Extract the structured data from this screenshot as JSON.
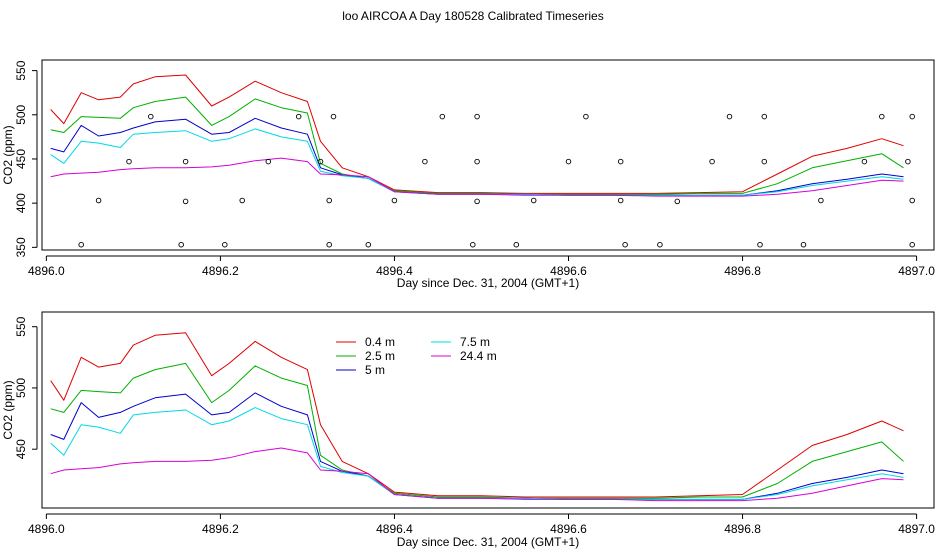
{
  "title": "loo AIRCOA A  Day 180528  Calibrated Timeseries",
  "colors": {
    "s04": "#DF0000",
    "s25": "#00B000",
    "s5": "#0000CC",
    "s75": "#00D8E8",
    "s244": "#D800D8",
    "markers": "#000000"
  },
  "chart_data": [
    {
      "type": "line",
      "xlabel": "Day since Dec. 31, 2004 (GMT+1)",
      "ylabel": "CO2 (ppm)",
      "xlim": [
        4895.995,
        4897.02
      ],
      "ylim": [
        347,
        562
      ],
      "xticks": [
        {
          "value": 4896.0,
          "label": "4896.0"
        },
        {
          "value": 4896.2,
          "label": "4896.2"
        },
        {
          "value": 4896.4,
          "label": "4896.4"
        },
        {
          "value": 4896.6,
          "label": "4896.6"
        },
        {
          "value": 4896.8,
          "label": "4896.8"
        },
        {
          "value": 4897.0,
          "label": "4897.0"
        }
      ],
      "yticks": [
        {
          "value": 350,
          "label": "350"
        },
        {
          "value": 400,
          "label": "400"
        },
        {
          "value": 450,
          "label": "450"
        },
        {
          "value": 500,
          "label": "500"
        },
        {
          "value": 550,
          "label": "550"
        }
      ],
      "grid": false,
      "legend": null,
      "series": [
        {
          "color_key": "s04",
          "x": [
            4896.005,
            4896.02,
            4896.04,
            4896.06,
            4896.085,
            4896.1,
            4896.125,
            4896.16,
            4896.19,
            4896.21,
            4896.24,
            4896.27,
            4896.3,
            4896.315,
            4896.34,
            4896.37,
            4896.4,
            4896.45,
            4896.5,
            4896.55,
            4896.6,
            4896.65,
            4896.7,
            4896.75,
            4896.8,
            4896.84,
            4896.88,
            4896.92,
            4896.96,
            4896.985
          ],
          "y": [
            506,
            490,
            525,
            517,
            520,
            535,
            543,
            545,
            510,
            520,
            538,
            525,
            515,
            470,
            440,
            430,
            415,
            412,
            412,
            411,
            411,
            411,
            411,
            412,
            413,
            433,
            453,
            462,
            473,
            465
          ]
        },
        {
          "color_key": "s25",
          "x": [
            4896.005,
            4896.02,
            4896.04,
            4896.06,
            4896.085,
            4896.1,
            4896.125,
            4896.16,
            4896.19,
            4896.21,
            4896.24,
            4896.27,
            4896.3,
            4896.315,
            4896.34,
            4896.37,
            4896.4,
            4896.45,
            4896.5,
            4896.55,
            4896.6,
            4896.65,
            4896.7,
            4896.75,
            4896.8,
            4896.84,
            4896.88,
            4896.92,
            4896.96,
            4896.985
          ],
          "y": [
            483,
            480,
            498,
            497,
            496,
            508,
            515,
            520,
            488,
            498,
            518,
            508,
            502,
            445,
            433,
            428,
            414,
            411,
            411,
            410,
            410,
            410,
            410,
            411,
            411,
            422,
            440,
            448,
            456,
            440
          ]
        },
        {
          "color_key": "s5",
          "x": [
            4896.005,
            4896.02,
            4896.04,
            4896.06,
            4896.085,
            4896.1,
            4896.125,
            4896.16,
            4896.19,
            4896.21,
            4896.24,
            4896.27,
            4896.3,
            4896.315,
            4896.34,
            4896.37,
            4896.4,
            4896.45,
            4896.5,
            4896.55,
            4896.6,
            4896.65,
            4896.7,
            4896.75,
            4896.8,
            4896.84,
            4896.88,
            4896.92,
            4896.96,
            4896.985
          ],
          "y": [
            462,
            458,
            488,
            476,
            480,
            485,
            492,
            495,
            478,
            480,
            496,
            485,
            478,
            440,
            432,
            428,
            413,
            410,
            410,
            410,
            409,
            409,
            409,
            409,
            409,
            414,
            422,
            427,
            433,
            430
          ]
        },
        {
          "color_key": "s75",
          "x": [
            4896.005,
            4896.02,
            4896.04,
            4896.06,
            4896.085,
            4896.1,
            4896.125,
            4896.16,
            4896.19,
            4896.21,
            4896.24,
            4896.27,
            4896.3,
            4896.315,
            4896.34,
            4896.37,
            4896.4,
            4896.45,
            4896.5,
            4896.55,
            4896.6,
            4896.65,
            4896.7,
            4896.75,
            4896.8,
            4896.84,
            4896.88,
            4896.92,
            4896.96,
            4896.985
          ],
          "y": [
            455,
            445,
            470,
            468,
            463,
            478,
            480,
            482,
            470,
            473,
            484,
            475,
            470,
            436,
            431,
            428,
            413,
            410,
            410,
            410,
            409,
            409,
            409,
            409,
            409,
            413,
            420,
            425,
            430,
            427
          ]
        },
        {
          "color_key": "s244",
          "x": [
            4896.005,
            4896.02,
            4896.04,
            4896.06,
            4896.085,
            4896.1,
            4896.125,
            4896.16,
            4896.19,
            4896.21,
            4896.24,
            4896.27,
            4896.3,
            4896.315,
            4896.34,
            4896.37,
            4896.4,
            4896.45,
            4896.5,
            4896.55,
            4896.6,
            4896.65,
            4896.7,
            4896.75,
            4896.8,
            4896.84,
            4896.88,
            4896.92,
            4896.96,
            4896.985
          ],
          "y": [
            430,
            433,
            434,
            435,
            438,
            439,
            440,
            440,
            441,
            443,
            448,
            451,
            447,
            433,
            432,
            430,
            413,
            410,
            410,
            409,
            409,
            409,
            408,
            408,
            408,
            410,
            414,
            420,
            426,
            425
          ]
        }
      ],
      "markers": {
        "x": [
          4896.04,
          4896.06,
          4896.095,
          4896.12,
          4896.155,
          4896.16,
          4896.16,
          4896.205,
          4896.225,
          4896.255,
          4896.29,
          4896.315,
          4896.325,
          4896.325,
          4896.33,
          4896.37,
          4896.4,
          4896.435,
          4896.455,
          4896.49,
          4896.495,
          4896.495,
          4896.495,
          4896.54,
          4896.56,
          4896.6,
          4896.62,
          4896.66,
          4896.66,
          4896.665,
          4896.705,
          4896.725,
          4896.765,
          4896.785,
          4896.82,
          4896.825,
          4896.825,
          4896.87,
          4896.89,
          4896.94,
          4896.96,
          4896.99,
          4896.995,
          4896.995,
          4896.995
        ],
        "y": [
          353,
          403,
          447,
          498,
          353,
          402,
          447,
          353,
          403,
          447,
          498,
          447,
          403,
          353,
          498,
          353,
          403,
          447,
          498,
          353,
          402,
          447,
          498,
          353,
          403,
          447,
          498,
          447,
          403,
          353,
          353,
          402,
          447,
          498,
          353,
          447,
          498,
          353,
          403,
          447,
          498,
          447,
          403,
          353,
          498
        ]
      }
    },
    {
      "type": "line",
      "xlabel": "Day since Dec. 31, 2004 (GMT+1)",
      "ylabel": "CO2 (ppm)",
      "xlim": [
        4895.995,
        4897.02
      ],
      "ylim": [
        402,
        562
      ],
      "xticks": [
        {
          "value": 4896.0,
          "label": "4896.0"
        },
        {
          "value": 4896.2,
          "label": "4896.2"
        },
        {
          "value": 4896.4,
          "label": "4896.4"
        },
        {
          "value": 4896.6,
          "label": "4896.6"
        },
        {
          "value": 4896.8,
          "label": "4896.8"
        },
        {
          "value": 4897.0,
          "label": "4897.0"
        }
      ],
      "yticks": [
        {
          "value": 450,
          "label": "450"
        },
        {
          "value": 500,
          "label": "500"
        },
        {
          "value": 550,
          "label": "550"
        }
      ],
      "grid": false,
      "legend": {
        "placement": "top-center",
        "entries": [
          {
            "label": "0.4 m",
            "color_key": "s04"
          },
          {
            "label": "2.5 m",
            "color_key": "s25"
          },
          {
            "label": "5 m",
            "color_key": "s5"
          },
          {
            "label": "7.5 m",
            "color_key": "s75"
          },
          {
            "label": "24.4 m",
            "color_key": "s244"
          }
        ]
      },
      "series": [
        {
          "name": "0.4 m",
          "color_key": "s04",
          "x": [
            4896.005,
            4896.02,
            4896.04,
            4896.06,
            4896.085,
            4896.1,
            4896.125,
            4896.16,
            4896.19,
            4896.21,
            4896.24,
            4896.27,
            4896.3,
            4896.315,
            4896.34,
            4896.37,
            4896.4,
            4896.45,
            4896.5,
            4896.55,
            4896.6,
            4896.65,
            4896.7,
            4896.75,
            4896.8,
            4896.84,
            4896.88,
            4896.92,
            4896.96,
            4896.985
          ],
          "y": [
            506,
            490,
            525,
            517,
            520,
            535,
            543,
            545,
            510,
            520,
            538,
            525,
            515,
            470,
            440,
            430,
            415,
            412,
            412,
            411,
            411,
            411,
            411,
            412,
            413,
            433,
            453,
            462,
            473,
            465
          ]
        },
        {
          "name": "2.5 m",
          "color_key": "s25",
          "x": [
            4896.005,
            4896.02,
            4896.04,
            4896.06,
            4896.085,
            4896.1,
            4896.125,
            4896.16,
            4896.19,
            4896.21,
            4896.24,
            4896.27,
            4896.3,
            4896.315,
            4896.34,
            4896.37,
            4896.4,
            4896.45,
            4896.5,
            4896.55,
            4896.6,
            4896.65,
            4896.7,
            4896.75,
            4896.8,
            4896.84,
            4896.88,
            4896.92,
            4896.96,
            4896.985
          ],
          "y": [
            483,
            480,
            498,
            497,
            496,
            508,
            515,
            520,
            488,
            498,
            518,
            508,
            502,
            445,
            433,
            428,
            414,
            411,
            411,
            410,
            410,
            410,
            410,
            411,
            411,
            422,
            440,
            448,
            456,
            440
          ]
        },
        {
          "name": "5 m",
          "color_key": "s5",
          "x": [
            4896.005,
            4896.02,
            4896.04,
            4896.06,
            4896.085,
            4896.1,
            4896.125,
            4896.16,
            4896.19,
            4896.21,
            4896.24,
            4896.27,
            4896.3,
            4896.315,
            4896.34,
            4896.37,
            4896.4,
            4896.45,
            4896.5,
            4896.55,
            4896.6,
            4896.65,
            4896.7,
            4896.75,
            4896.8,
            4896.84,
            4896.88,
            4896.92,
            4896.96,
            4896.985
          ],
          "y": [
            462,
            458,
            488,
            476,
            480,
            485,
            492,
            495,
            478,
            480,
            496,
            485,
            478,
            440,
            432,
            428,
            413,
            410,
            410,
            410,
            409,
            409,
            409,
            409,
            409,
            414,
            422,
            427,
            433,
            430
          ]
        },
        {
          "name": "7.5 m",
          "color_key": "s75",
          "x": [
            4896.005,
            4896.02,
            4896.04,
            4896.06,
            4896.085,
            4896.1,
            4896.125,
            4896.16,
            4896.19,
            4896.21,
            4896.24,
            4896.27,
            4896.3,
            4896.315,
            4896.34,
            4896.37,
            4896.4,
            4896.45,
            4896.5,
            4896.55,
            4896.6,
            4896.65,
            4896.7,
            4896.75,
            4896.8,
            4896.84,
            4896.88,
            4896.92,
            4896.96,
            4896.985
          ],
          "y": [
            455,
            445,
            470,
            468,
            463,
            478,
            480,
            482,
            470,
            473,
            484,
            475,
            470,
            436,
            431,
            428,
            413,
            410,
            410,
            410,
            409,
            409,
            409,
            409,
            409,
            413,
            420,
            425,
            430,
            427
          ]
        },
        {
          "name": "24.4 m",
          "color_key": "s244",
          "x": [
            4896.005,
            4896.02,
            4896.04,
            4896.06,
            4896.085,
            4896.1,
            4896.125,
            4896.16,
            4896.19,
            4896.21,
            4896.24,
            4896.27,
            4896.3,
            4896.315,
            4896.34,
            4896.37,
            4896.4,
            4896.45,
            4896.5,
            4896.55,
            4896.6,
            4896.65,
            4896.7,
            4896.75,
            4896.8,
            4896.84,
            4896.88,
            4896.92,
            4896.96,
            4896.985
          ],
          "y": [
            430,
            433,
            434,
            435,
            438,
            439,
            440,
            440,
            441,
            443,
            448,
            451,
            447,
            433,
            432,
            430,
            413,
            410,
            410,
            409,
            409,
            409,
            408,
            408,
            408,
            410,
            414,
            420,
            426,
            425
          ]
        }
      ]
    }
  ]
}
